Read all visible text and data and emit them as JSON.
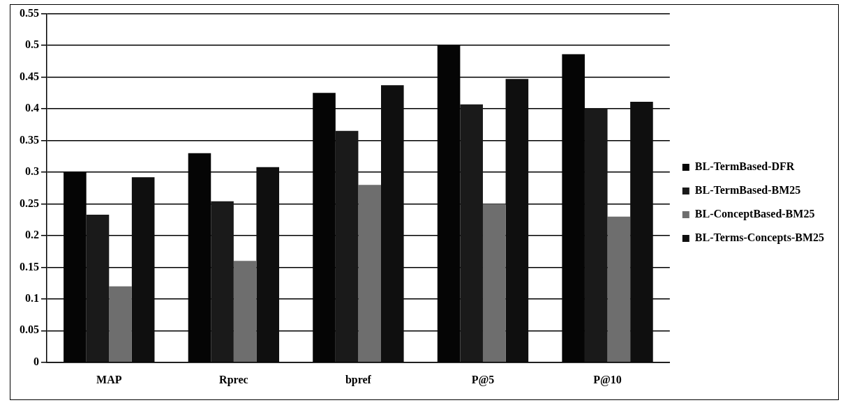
{
  "chart_data": {
    "type": "bar",
    "categories": [
      "MAP",
      "Rprec",
      "bpref",
      "P@5",
      "P@10"
    ],
    "series": [
      {
        "name": "BL-TermBased-DFR",
        "color": "#050505",
        "values": [
          0.3,
          0.33,
          0.425,
          0.5,
          0.486
        ]
      },
      {
        "name": "BL-TermBased-BM25",
        "color": "#1a1a1a",
        "values": [
          0.233,
          0.254,
          0.365,
          0.407,
          0.401
        ]
      },
      {
        "name": "BL-ConceptBased-BM25",
        "color": "#6e6e6e",
        "values": [
          0.12,
          0.16,
          0.28,
          0.25,
          0.23
        ]
      },
      {
        "name": "BL-Terms-Concepts-BM25",
        "color": "#0f0f0f",
        "values": [
          0.292,
          0.308,
          0.437,
          0.447,
          0.411
        ]
      }
    ],
    "ylim": [
      0,
      0.55
    ],
    "yticks": [
      0,
      0.05,
      0.1,
      0.15,
      0.2,
      0.25,
      0.3,
      0.35,
      0.4,
      0.45,
      0.5,
      0.55
    ],
    "grid": "y",
    "legend": "right"
  }
}
